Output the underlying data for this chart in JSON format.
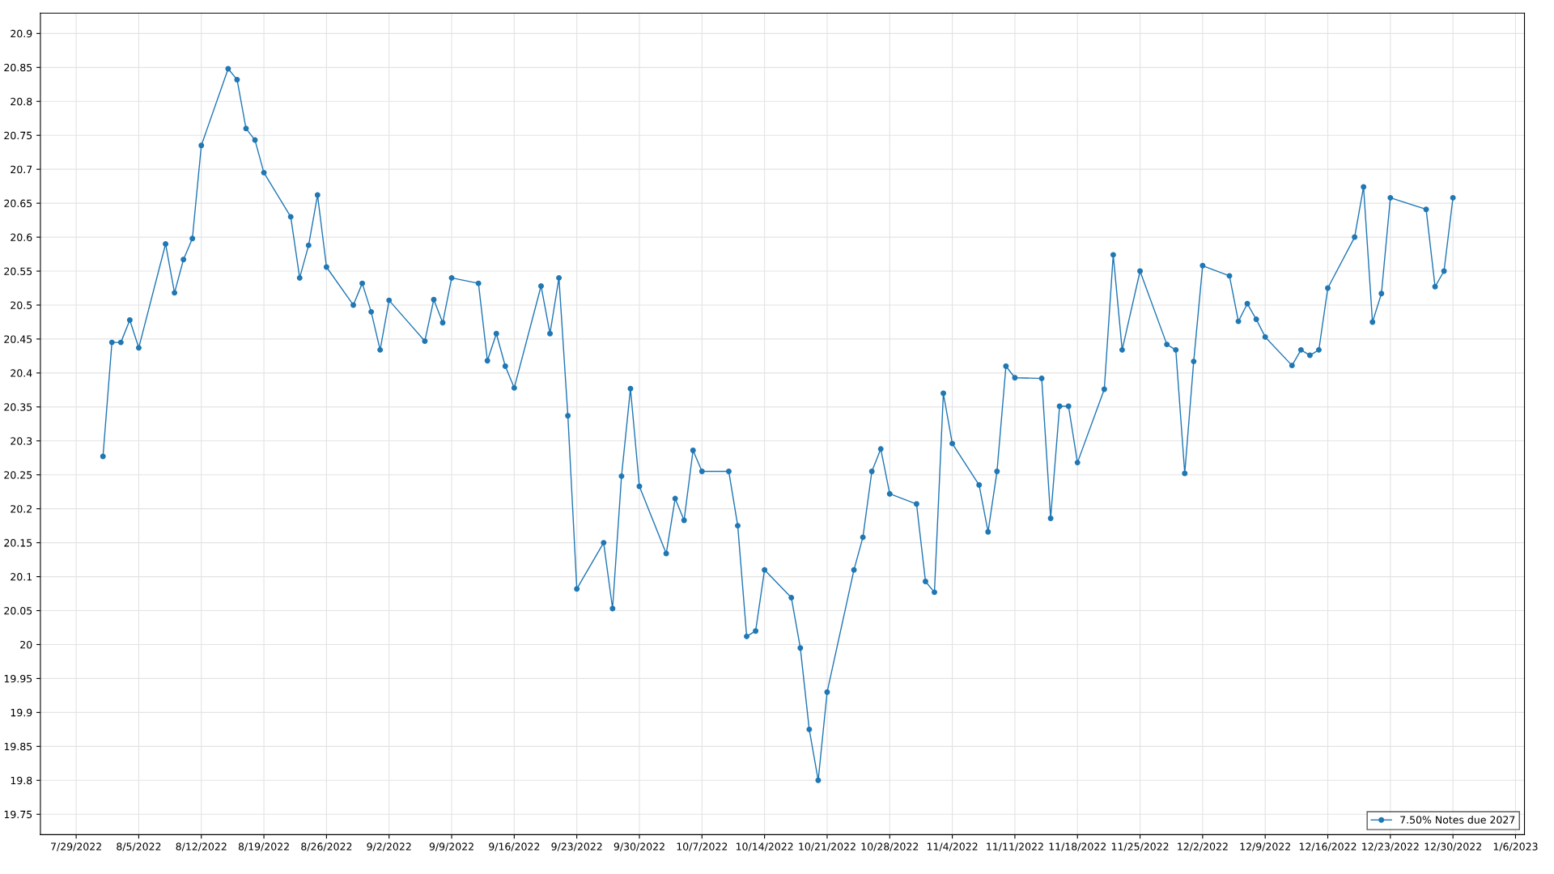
{
  "chart_data": {
    "type": "line",
    "x": [
      "2022-08-01",
      "2022-08-02",
      "2022-08-03",
      "2022-08-04",
      "2022-08-05",
      "2022-08-08",
      "2022-08-09",
      "2022-08-10",
      "2022-08-11",
      "2022-08-12",
      "2022-08-15",
      "2022-08-16",
      "2022-08-17",
      "2022-08-18",
      "2022-08-19",
      "2022-08-22",
      "2022-08-23",
      "2022-08-24",
      "2022-08-25",
      "2022-08-26",
      "2022-08-29",
      "2022-08-30",
      "2022-08-31",
      "2022-09-01",
      "2022-09-02",
      "2022-09-06",
      "2022-09-07",
      "2022-09-08",
      "2022-09-09",
      "2022-09-12",
      "2022-09-13",
      "2022-09-14",
      "2022-09-15",
      "2022-09-16",
      "2022-09-19",
      "2022-09-20",
      "2022-09-21",
      "2022-09-22",
      "2022-09-23",
      "2022-09-26",
      "2022-09-27",
      "2022-09-28",
      "2022-09-29",
      "2022-09-30",
      "2022-10-03",
      "2022-10-04",
      "2022-10-05",
      "2022-10-06",
      "2022-10-07",
      "2022-10-10",
      "2022-10-11",
      "2022-10-12",
      "2022-10-13",
      "2022-10-14",
      "2022-10-17",
      "2022-10-18",
      "2022-10-19",
      "2022-10-20",
      "2022-10-21",
      "2022-10-24",
      "2022-10-25",
      "2022-10-26",
      "2022-10-27",
      "2022-10-28",
      "2022-10-31",
      "2022-11-01",
      "2022-11-02",
      "2022-11-03",
      "2022-11-04",
      "2022-11-07",
      "2022-11-08",
      "2022-11-09",
      "2022-11-10",
      "2022-11-11",
      "2022-11-14",
      "2022-11-15",
      "2022-11-16",
      "2022-11-17",
      "2022-11-18",
      "2022-11-21",
      "2022-11-22",
      "2022-11-23",
      "2022-11-25",
      "2022-11-28",
      "2022-11-29",
      "2022-11-30",
      "2022-12-01",
      "2022-12-02",
      "2022-12-05",
      "2022-12-06",
      "2022-12-07",
      "2022-12-08",
      "2022-12-09",
      "2022-12-12",
      "2022-12-13",
      "2022-12-14",
      "2022-12-15",
      "2022-12-16",
      "2022-12-19",
      "2022-12-20",
      "2022-12-21",
      "2022-12-22",
      "2022-12-23",
      "2022-12-27",
      "2022-12-28",
      "2022-12-29",
      "2022-12-30"
    ],
    "series": [
      {
        "name": "7.50% Notes due 2027",
        "color": "#1f77b4",
        "values": [
          20.277,
          20.445,
          20.445,
          20.478,
          20.437,
          20.59,
          20.518,
          20.567,
          20.598,
          20.735,
          20.848,
          20.832,
          20.76,
          20.743,
          20.695,
          20.63,
          20.54,
          20.588,
          20.662,
          20.556,
          20.5,
          20.532,
          20.49,
          20.434,
          20.507,
          20.447,
          20.508,
          20.474,
          20.54,
          20.532,
          20.418,
          20.458,
          20.41,
          20.378,
          20.528,
          20.458,
          20.54,
          20.337,
          20.082,
          20.15,
          20.053,
          20.248,
          20.377,
          20.233,
          20.134,
          20.215,
          20.183,
          20.286,
          20.255,
          20.255,
          20.175,
          20.012,
          20.02,
          20.11,
          20.069,
          19.995,
          19.875,
          19.8,
          19.93,
          20.11,
          20.158,
          20.255,
          20.288,
          20.222,
          20.207,
          20.093,
          20.077,
          20.37,
          20.296,
          20.235,
          20.166,
          20.255,
          20.41,
          20.393,
          20.392,
          20.186,
          20.351,
          20.351,
          20.268,
          20.376,
          20.574,
          20.434,
          20.55,
          20.442,
          20.434,
          20.252,
          20.417,
          20.558,
          20.543,
          20.476,
          20.502,
          20.479,
          20.453,
          20.411,
          20.434,
          20.426,
          20.434,
          20.525,
          20.6,
          20.674,
          20.475,
          20.517,
          20.658,
          20.641,
          20.527,
          20.55,
          20.658
        ]
      }
    ],
    "xlim": [
      "2022-07-25",
      "2023-01-07"
    ],
    "xticks": [
      {
        "value": "2022-07-29",
        "label": "7/29/2022"
      },
      {
        "value": "2022-08-05",
        "label": "8/5/2022"
      },
      {
        "value": "2022-08-12",
        "label": "8/12/2022"
      },
      {
        "value": "2022-08-19",
        "label": "8/19/2022"
      },
      {
        "value": "2022-08-26",
        "label": "8/26/2022"
      },
      {
        "value": "2022-09-02",
        "label": "9/2/2022"
      },
      {
        "value": "2022-09-09",
        "label": "9/9/2022"
      },
      {
        "value": "2022-09-16",
        "label": "9/16/2022"
      },
      {
        "value": "2022-09-23",
        "label": "9/23/2022"
      },
      {
        "value": "2022-09-30",
        "label": "9/30/2022"
      },
      {
        "value": "2022-10-07",
        "label": "10/7/2022"
      },
      {
        "value": "2022-10-14",
        "label": "10/14/2022"
      },
      {
        "value": "2022-10-21",
        "label": "10/21/2022"
      },
      {
        "value": "2022-10-28",
        "label": "10/28/2022"
      },
      {
        "value": "2022-11-04",
        "label": "11/4/2022"
      },
      {
        "value": "2022-11-11",
        "label": "11/11/2022"
      },
      {
        "value": "2022-11-18",
        "label": "11/18/2022"
      },
      {
        "value": "2022-11-25",
        "label": "11/25/2022"
      },
      {
        "value": "2022-12-02",
        "label": "12/2/2022"
      },
      {
        "value": "2022-12-09",
        "label": "12/9/2022"
      },
      {
        "value": "2022-12-16",
        "label": "12/16/2022"
      },
      {
        "value": "2022-12-23",
        "label": "12/23/2022"
      },
      {
        "value": "2022-12-30",
        "label": "12/30/2022"
      },
      {
        "value": "2023-01-06",
        "label": "1/6/2023"
      }
    ],
    "ylim": [
      19.72,
      20.93
    ],
    "yticks": [
      19.75,
      19.8,
      19.85,
      19.9,
      19.95,
      20,
      20.05,
      20.1,
      20.15,
      20.2,
      20.25,
      20.3,
      20.35,
      20.4,
      20.45,
      20.5,
      20.55,
      20.6,
      20.65,
      20.7,
      20.75,
      20.8,
      20.85,
      20.9
    ],
    "grid": true,
    "legend": "bottom right",
    "marker": "circle",
    "line_style": "solid"
  }
}
